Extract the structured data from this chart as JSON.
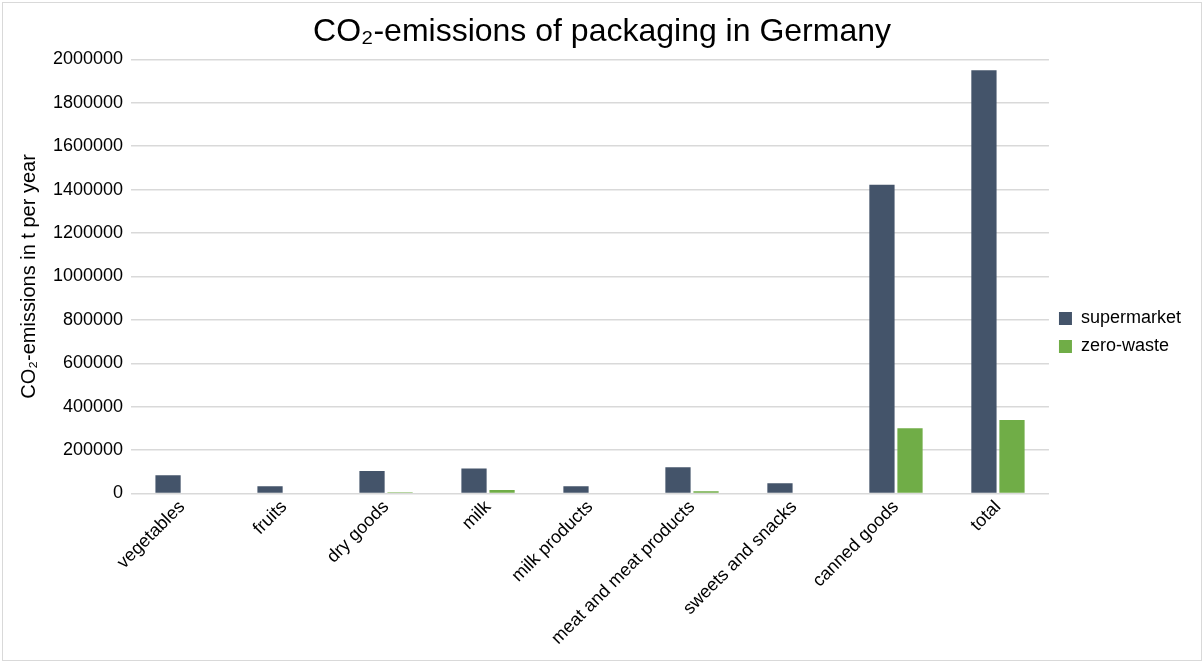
{
  "chart_data": {
    "type": "bar",
    "title": "CO₂-emissions of packaging in Germany",
    "ylabel": "CO₂-emissions in t per year",
    "categories": [
      "vegetables",
      "fruits",
      "dry goods",
      "milk",
      "milk products",
      "meat and meat products",
      "sweets and snacks",
      "canned goods",
      "total"
    ],
    "series": [
      {
        "name": "supermarket",
        "color": "#44546a",
        "values": [
          84000,
          33000,
          103000,
          115000,
          33000,
          121000,
          47000,
          1422000,
          1950000
        ]
      },
      {
        "name": "zero-waste",
        "color": "#70ad47",
        "values": [
          0,
          0,
          6000,
          16000,
          null,
          10000,
          null,
          300000,
          338000
        ]
      }
    ],
    "ylim": [
      0,
      2000000
    ],
    "yticks": [
      0,
      200000,
      400000,
      600000,
      800000,
      1000000,
      1200000,
      1400000,
      1600000,
      1800000,
      2000000
    ],
    "grid": "y",
    "legend": "right"
  }
}
